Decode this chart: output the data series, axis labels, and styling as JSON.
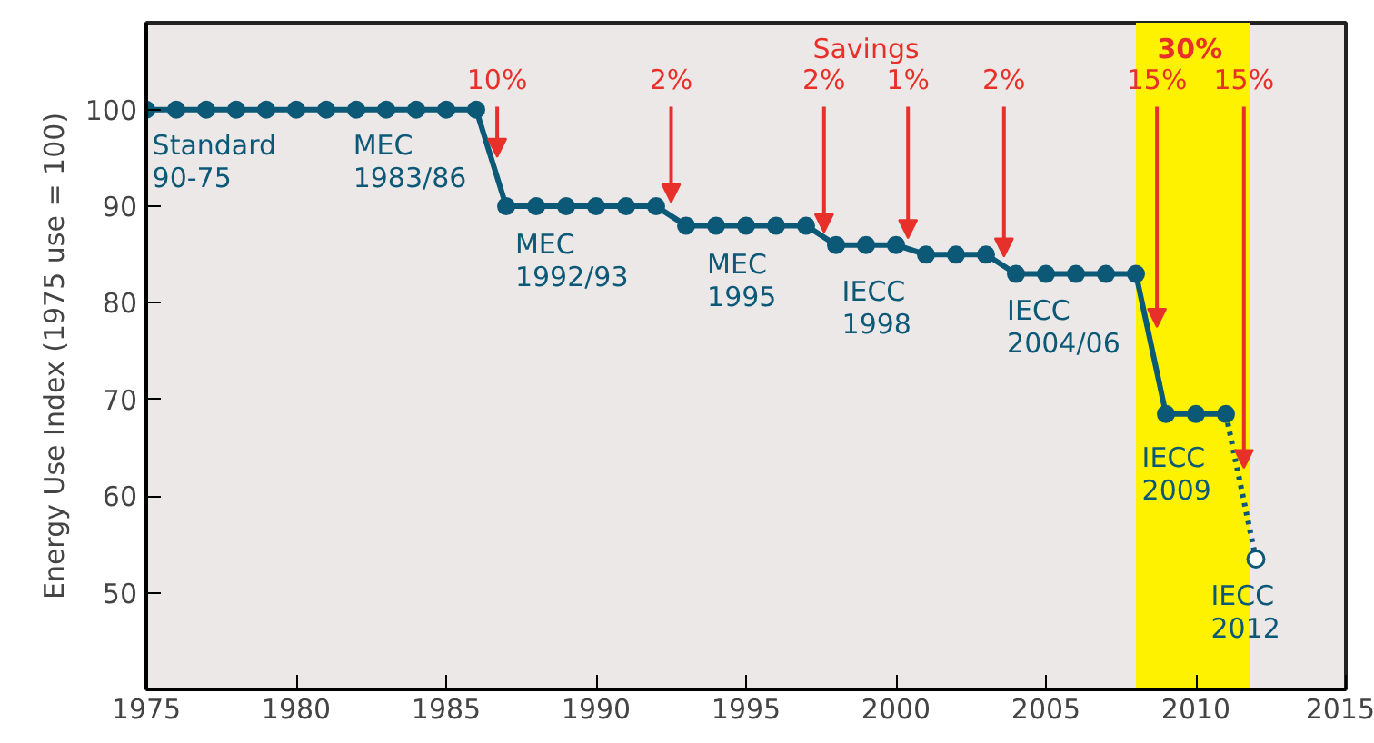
{
  "chart_data": {
    "type": "line",
    "ylabel": "Energy Use Index (1975 use = 100)",
    "xlim": [
      1975,
      2015
    ],
    "ylim": [
      40,
      109
    ],
    "xticks": [
      1975,
      1980,
      1985,
      1990,
      1995,
      2000,
      2005,
      2010,
      2015
    ],
    "yticks": [
      50,
      60,
      70,
      80,
      90,
      100
    ],
    "grid": false,
    "marker": "circle",
    "line_style": "solid",
    "series": [
      {
        "color": "#0b5877",
        "x": [
          1975,
          1976,
          1977,
          1978,
          1979,
          1980,
          1981,
          1982,
          1983,
          1984,
          1985,
          1986,
          1987,
          1988,
          1989,
          1990,
          1991,
          1992,
          1993,
          1994,
          1995,
          1996,
          1997,
          1998,
          1999,
          2000,
          2001,
          2002,
          2003,
          2004,
          2005,
          2006,
          2007,
          2008,
          2009,
          2010,
          2011
        ],
        "values": [
          100,
          100,
          100,
          100,
          100,
          100,
          100,
          100,
          100,
          100,
          100,
          100,
          90,
          90,
          90,
          90,
          90,
          90,
          88,
          88,
          88,
          88,
          88,
          86,
          86,
          86,
          85,
          85,
          85,
          83,
          83,
          83,
          83,
          83,
          68.5,
          68.5,
          68.5
        ]
      },
      {
        "color": "#0b5877",
        "x": [
          2011,
          2012
        ],
        "values": [
          68.5,
          53.5
        ],
        "line_style": "dotted",
        "marker": "none"
      },
      {
        "color": "#0b5877",
        "type": "scatter",
        "x": [
          2012
        ],
        "values": [
          53.5
        ],
        "marker": "circle"
      }
    ],
    "bands": [
      {
        "axis": "x",
        "from": 2008,
        "to": 2011.8,
        "color": "#fff200"
      }
    ],
    "annotations": [
      {
        "text": "10%",
        "x": 1986.7,
        "y": 95.1
      },
      {
        "text": "2%",
        "x": 1992.5,
        "y": 90.4
      },
      {
        "text": "2%",
        "x": 1997.6,
        "y": 87.3
      },
      {
        "text": "1%",
        "x": 2000.4,
        "y": 86.7
      },
      {
        "text": "2%",
        "x": 2003.6,
        "y": 84.8
      },
      {
        "text": "15%",
        "x": 2008.7,
        "y": 77.5
      },
      {
        "text": "15%",
        "x": 2011.6,
        "y": 62.9
      },
      "Savings",
      "30%",
      "Standard\n90-75",
      "MEC\n1983/86",
      "MEC\n1992/93",
      "MEC\n1995",
      "IECC\n1998",
      "IECC\n2004/06",
      "IECC\n2009",
      "IECC\n2012"
    ]
  }
}
